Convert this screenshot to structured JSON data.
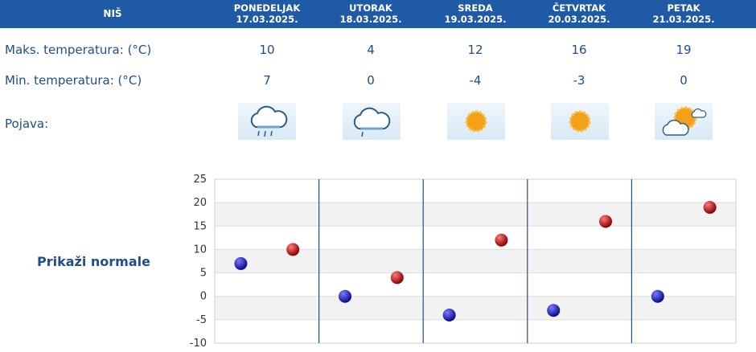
{
  "header": {
    "city": "NIŠ"
  },
  "days": [
    {
      "name": "PONEDELJAK",
      "date": "17.03.2025.",
      "max": "10",
      "min": "7",
      "icon": "rain-cloud-icon"
    },
    {
      "name": "UTORAK",
      "date": "18.03.2025.",
      "max": "4",
      "min": "0",
      "icon": "light-rain-cloud-icon"
    },
    {
      "name": "SREDA",
      "date": "19.03.2025.",
      "max": "12",
      "min": "-4",
      "icon": "sun-icon"
    },
    {
      "name": "ČETVRTAK",
      "date": "20.03.2025.",
      "max": "16",
      "min": "-3",
      "icon": "sun-icon"
    },
    {
      "name": "PETAK",
      "date": "21.03.2025.",
      "max": "19",
      "min": "0",
      "icon": "partly-cloudy-icon"
    }
  ],
  "labels": {
    "max": "Maks. temperatura: (°C)",
    "min": "Min. temperatura: (°C)",
    "phenomenon": "Pojava:"
  },
  "normals_link": "Prikaži normale",
  "colors": {
    "header": "#1f5aa6",
    "text": "#1f4e8c",
    "min_marker": "#1a1ab0",
    "max_marker": "#c40000"
  },
  "chart_data": {
    "type": "scatter",
    "categories": [
      "17.03.2025.",
      "18.03.2025.",
      "19.03.2025.",
      "20.03.2025.",
      "21.03.2025."
    ],
    "series": [
      {
        "values": [
          7,
          0,
          -4,
          -3,
          0
        ],
        "color": "#1a1ab0"
      },
      {
        "values": [
          10,
          4,
          12,
          16,
          19
        ],
        "color": "#c40000"
      }
    ],
    "yticks": [
      25,
      20,
      15,
      10,
      5,
      0,
      -5,
      -10
    ],
    "ylim": [
      -10,
      25
    ],
    "grid": true
  }
}
